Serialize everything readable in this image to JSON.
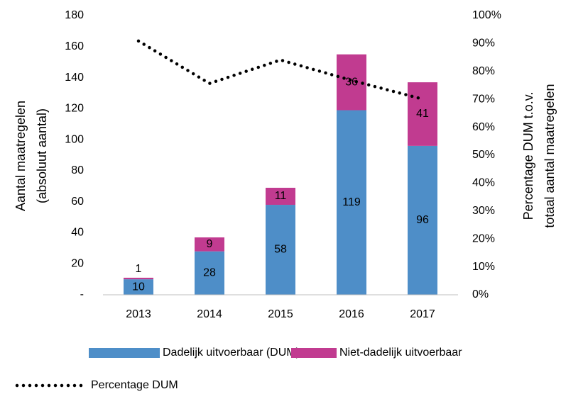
{
  "chart_data": {
    "type": "bar",
    "stacked": true,
    "categories": [
      "2013",
      "2014",
      "2015",
      "2016",
      "2017"
    ],
    "ylabel": [
      "Aantal maatregelen",
      "(absoluut aantal)"
    ],
    "y2label": [
      "Percentage DUM t.o.v.",
      "totaal aantal maatregelen"
    ],
    "series": [
      {
        "name": "Dadelijk uitvoerbaar (DUM)",
        "color": "#4e8ec8",
        "type": "bar",
        "values": [
          10,
          28,
          58,
          119,
          96
        ]
      },
      {
        "name": "Niet-dadelijk uitvoerbaar",
        "color": "#c13b90",
        "type": "bar",
        "values": [
          1,
          9,
          11,
          36,
          41
        ]
      },
      {
        "name": "Percentage DUM",
        "color": "#000000",
        "type": "line",
        "axis": "y2",
        "values": [
          90.9,
          75.7,
          84.1,
          76.8,
          70.1
        ]
      }
    ],
    "ylim": [
      0,
      180
    ],
    "yticks": [
      {
        "value": 0,
        "label": "-"
      },
      20,
      40,
      60,
      80,
      100,
      120,
      140,
      160,
      180
    ],
    "y2lim": [
      0,
      100
    ],
    "y2ticks": [
      {
        "value": 0,
        "label": "0%"
      },
      {
        "value": 10,
        "label": "10%"
      },
      {
        "value": 20,
        "label": "20%"
      },
      {
        "value": 30,
        "label": "30%"
      },
      {
        "value": 40,
        "label": "40%"
      },
      {
        "value": 50,
        "label": "50%"
      },
      {
        "value": 60,
        "label": "60%"
      },
      {
        "value": 70,
        "label": "70%"
      },
      {
        "value": 80,
        "label": "80%"
      },
      {
        "value": 90,
        "label": "90%"
      },
      {
        "value": 100,
        "label": "100%"
      }
    ],
    "grid": false
  }
}
